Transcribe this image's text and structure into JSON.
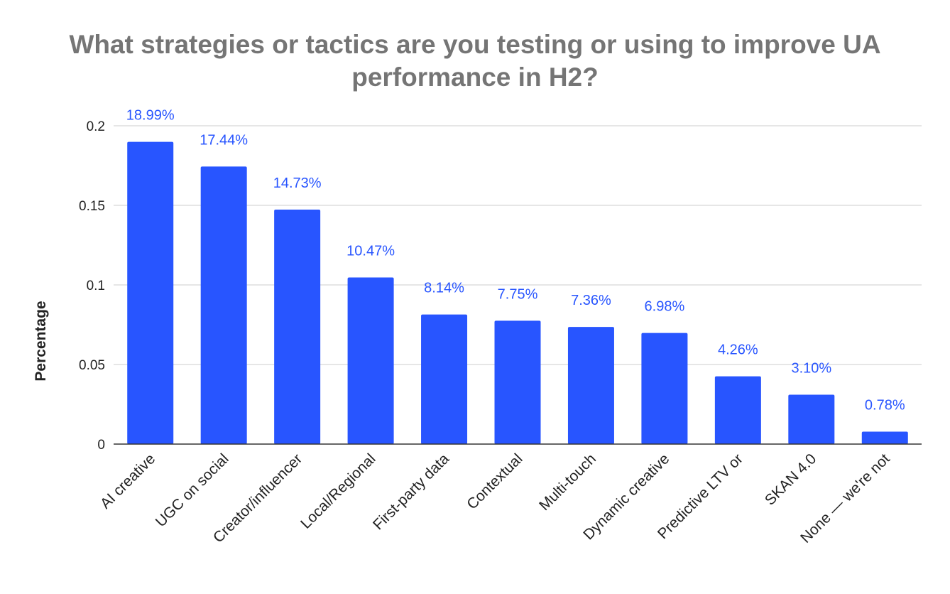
{
  "chart_data": {
    "type": "bar",
    "title_lines": [
      "What strategies or tactics are you testing or using to improve UA",
      "performance in H2?"
    ],
    "xlabel": "",
    "ylabel": "Percentage",
    "ylim": [
      0,
      0.2
    ],
    "yticks": [
      "0",
      "0.05",
      "0.1",
      "0.15",
      "0.2"
    ],
    "ytick_values": [
      0,
      0.05,
      0.1,
      0.15,
      0.2
    ],
    "grid": true,
    "legend": "none",
    "categories": [
      "AI creative",
      "UGC on social",
      "Creator/influencer",
      "Local/Regional",
      "First-party data",
      "Contextual",
      "Multi-touch",
      "Dynamic creative",
      "Predictive LTV or",
      "SKAN 4.0",
      "None — we're not"
    ],
    "values": [
      0.1899,
      0.1744,
      0.1473,
      0.1047,
      0.0814,
      0.0775,
      0.0736,
      0.0698,
      0.0426,
      0.031,
      0.0078
    ],
    "data_labels": [
      "18.99%",
      "17.44%",
      "14.73%",
      "10.47%",
      "8.14%",
      "7.75%",
      "7.36%",
      "6.98%",
      "4.26%",
      "3.10%",
      "0.78%"
    ],
    "colors": {
      "bar": "#2855ff",
      "label": "#2855ff",
      "title": "#757575",
      "grid": "#cccccc",
      "axis": "#333333",
      "text": "#222222"
    }
  }
}
